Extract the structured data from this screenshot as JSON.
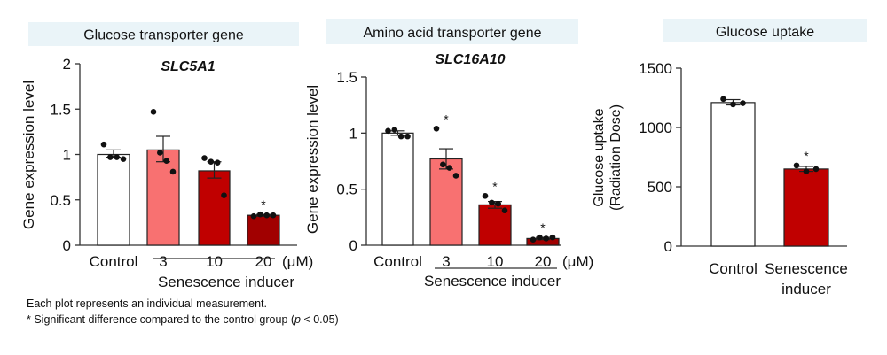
{
  "chart_data": [
    {
      "type": "bar",
      "panel_title": "Glucose transporter gene",
      "title": "SLC5A1",
      "ylabel": "Gene expression level",
      "ylim": [
        0,
        2
      ],
      "yticks": [
        0,
        0.5,
        1,
        1.5,
        2
      ],
      "ytick_labels": [
        "0",
        "0.5",
        "1",
        "1.5",
        "2"
      ],
      "categories": [
        "Control",
        "3",
        "10",
        "20"
      ],
      "unit": "(μM)",
      "group_label": "Senescence inducer",
      "values": [
        1.0,
        1.05,
        0.82,
        0.33
      ],
      "error_upper": [
        1.05,
        1.2,
        0.92,
        0.34
      ],
      "error_lower": [
        0.97,
        0.92,
        0.74,
        0.32
      ],
      "points": [
        [
          1.11,
          0.97,
          0.97,
          0.95
        ],
        [
          1.47,
          1.02,
          0.93,
          0.81
        ],
        [
          0.96,
          0.92,
          0.91,
          0.55
        ],
        [
          0.32,
          0.34,
          0.33,
          0.33
        ]
      ],
      "significant": [
        false,
        false,
        false,
        true
      ],
      "colors": [
        "#ffffff",
        "#f87171",
        "#c00000",
        "#a10000"
      ]
    },
    {
      "type": "bar",
      "panel_title": "Amino acid transporter gene",
      "title": "SLC16A10",
      "ylabel": "Gene expression level",
      "ylim": [
        0,
        1.5
      ],
      "yticks": [
        0,
        0.5,
        1,
        1.5
      ],
      "ytick_labels": [
        "0",
        "0.5",
        "1",
        "1.5"
      ],
      "categories": [
        "Control",
        "3",
        "10",
        "20"
      ],
      "unit": "(μM)",
      "group_label": "Senescence inducer",
      "values": [
        1.0,
        0.77,
        0.36,
        0.06
      ],
      "error_upper": [
        1.02,
        0.86,
        0.39,
        0.07
      ],
      "error_lower": [
        0.98,
        0.68,
        0.33,
        0.05
      ],
      "points": [
        [
          1.02,
          1.03,
          0.97,
          0.97
        ],
        [
          1.04,
          0.72,
          0.69,
          0.62
        ],
        [
          0.44,
          0.38,
          0.37,
          0.31
        ],
        [
          0.05,
          0.07,
          0.06,
          0.07
        ]
      ],
      "significant": [
        false,
        true,
        true,
        true
      ],
      "colors": [
        "#ffffff",
        "#f87171",
        "#c00000",
        "#a10000"
      ]
    },
    {
      "type": "bar",
      "panel_title": "Glucose uptake",
      "title": "",
      "ylabel": "Glucose uptake",
      "ylabel2": "(Radiation Dose)",
      "ylim": [
        0,
        1500
      ],
      "yticks": [
        0,
        500,
        1000,
        1500
      ],
      "ytick_labels": [
        "0",
        "500",
        "1000",
        "1500"
      ],
      "categories": [
        "Control",
        "Senescence inducer"
      ],
      "category_lines": [
        [
          "Control"
        ],
        [
          "Senescence",
          "inducer"
        ]
      ],
      "values": [
        1210,
        650
      ],
      "error_upper": [
        1235,
        672
      ],
      "error_lower": [
        1190,
        630
      ],
      "points": [
        [
          1240,
          1195,
          1205
        ],
        [
          680,
          630,
          650
        ]
      ],
      "significant": [
        false,
        true
      ],
      "colors": [
        "#ffffff",
        "#c00000"
      ]
    }
  ],
  "footnotes": {
    "line1": "Each plot represents an individual measurement.",
    "line2_pre": "* Significant difference compared to the control group (",
    "line2_p": "p",
    "line2_post": " < 0.05)"
  },
  "title_box_color": "#eaf4f8"
}
